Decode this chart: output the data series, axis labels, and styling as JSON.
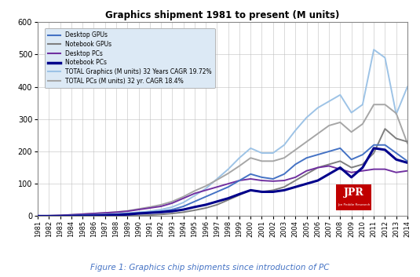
{
  "title": "Graphics shipment 1981 to present (M units)",
  "caption": "Figure 1: Graphics chip shipments since introduction of PC",
  "years": [
    1981,
    1982,
    1983,
    1984,
    1985,
    1986,
    1987,
    1988,
    1989,
    1990,
    1991,
    1992,
    1993,
    1994,
    1995,
    1996,
    1997,
    1998,
    1999,
    2000,
    2001,
    2002,
    2003,
    2004,
    2005,
    2006,
    2007,
    2008,
    2009,
    2010,
    2011,
    2012,
    2013,
    2014
  ],
  "desktop_gpus": [
    0,
    0.5,
    1,
    2,
    3,
    4,
    5,
    6,
    8,
    10,
    12,
    15,
    20,
    30,
    45,
    60,
    75,
    90,
    110,
    130,
    120,
    115,
    130,
    160,
    180,
    190,
    200,
    210,
    175,
    190,
    220,
    220,
    195,
    170
  ],
  "notebook_gpus": [
    0,
    0,
    0,
    0,
    0,
    0,
    0,
    0.5,
    1,
    2,
    3,
    5,
    8,
    12,
    18,
    25,
    35,
    50,
    65,
    80,
    75,
    80,
    90,
    110,
    130,
    150,
    160,
    170,
    150,
    160,
    195,
    270,
    240,
    230
  ],
  "desktop_pcs": [
    0,
    1,
    2,
    4,
    6,
    8,
    10,
    12,
    15,
    20,
    25,
    30,
    40,
    55,
    70,
    80,
    90,
    100,
    110,
    115,
    110,
    108,
    110,
    120,
    140,
    150,
    155,
    145,
    135,
    140,
    145,
    145,
    135,
    140
  ],
  "notebook_pcs": [
    0,
    0,
    0,
    0,
    0.5,
    1,
    2,
    3,
    5,
    8,
    10,
    12,
    15,
    20,
    28,
    35,
    45,
    55,
    68,
    80,
    75,
    75,
    80,
    90,
    100,
    110,
    130,
    150,
    120,
    150,
    210,
    205,
    175,
    165
  ],
  "total_graphics": [
    0,
    0.5,
    1,
    2,
    3,
    4,
    5,
    6.5,
    9,
    12,
    15,
    20,
    28,
    42,
    63,
    85,
    115,
    145,
    180,
    210,
    195,
    195,
    220,
    265,
    305,
    335,
    355,
    375,
    320,
    345,
    515,
    490,
    315,
    400
  ],
  "total_pcs": [
    0,
    1,
    2,
    4,
    6,
    8,
    10,
    12.5,
    16,
    22,
    28,
    35,
    45,
    60,
    78,
    93,
    112,
    132,
    155,
    180,
    170,
    170,
    180,
    205,
    230,
    255,
    280,
    290,
    260,
    285,
    345,
    345,
    318,
    225
  ],
  "desktop_gpu_color": "#4472c4",
  "notebook_gpu_color": "#7f7f7f",
  "desktop_pc_color": "#7030a0",
  "notebook_pc_color": "#00008B",
  "total_graphics_color": "#9dc3e6",
  "total_pcs_color": "#a6a6a6",
  "background_color": "#ffffff",
  "plot_bg_color": "#ffffff",
  "grid_color": "#bfbfbf",
  "jpr_box_color": "#c00000",
  "ylim": [
    0,
    600
  ],
  "yticks": [
    0,
    100,
    200,
    300,
    400,
    500,
    600
  ],
  "legend_labels": [
    "Desktop GPUs",
    "Notebook GPUs",
    "Desktop PCs",
    "Notebook PCs",
    "TOTAL Graphics (M units) 32 Years CAGR 19.72%",
    "TOTAL PCs (M units) 32 yr. CAGR 18.4%"
  ],
  "legend_colors": [
    "#4472c4",
    "#7f7f7f",
    "#7030a0",
    "#00008B",
    "#9dc3e6",
    "#a6a6a6"
  ],
  "legend_linewidths": [
    1.5,
    1.5,
    1.5,
    2.5,
    1.5,
    1.5
  ]
}
